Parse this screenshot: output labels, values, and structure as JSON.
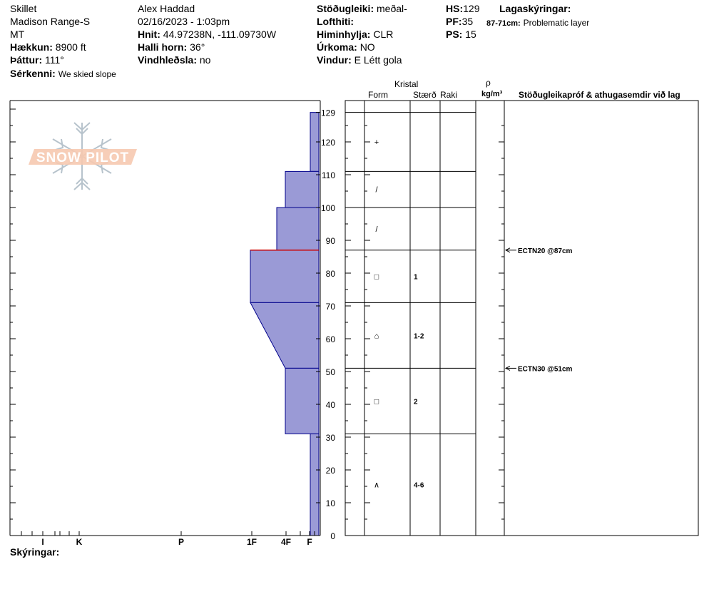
{
  "header": {
    "col1": {
      "location": "Skillet",
      "range": "Madison Range-S",
      "state": "MT",
      "elevation_label": "Hækkun:",
      "elevation_value": "8900 ft",
      "aspect_label": "Þáttur:",
      "aspect_value": "111°",
      "notes_label": "Sérkenni:",
      "notes_value": "We skied slope"
    },
    "col2": {
      "observer": "Alex Haddad",
      "datetime": "02/16/2023 - 1:03pm",
      "coords_label": "Hnit:",
      "coords_value": "44.97238N, -111.09730W",
      "slope_label": "Halli horn:",
      "slope_value": "36°",
      "wind_loading_label": "Vindhleðsla:",
      "wind_loading_value": "no"
    },
    "col3": {
      "stability_label": "Stöðugleiki:",
      "stability_value": "meðal-",
      "air_temp_label": "Lofthiti:",
      "sky_label": "Himinhylja:",
      "sky_value": "CLR",
      "precip_label": "Úrkoma:",
      "precip_value": "NO",
      "wind_label": "Vindur:",
      "wind_value": "E Létt gola"
    },
    "col4": {
      "hs_label": "HS:",
      "hs_value": "129",
      "pf_label": "PF:",
      "pf_value": "35",
      "ps_label": "PS:",
      "ps_value": "15"
    },
    "col5": {
      "layer_notes_label": "Lagaskýringar:",
      "layer_range": "87-71cm:",
      "layer_note": "Problematic layer"
    }
  },
  "logo": {
    "text": "SNOW PILOT"
  },
  "table_headers": {
    "crystal": "Kristal",
    "form": "Form",
    "size": "Stærð",
    "moisture": "Raki",
    "rho": "ρ",
    "density_unit": "kg/m³",
    "tests": "Stöðugleikapróf & athugasemdir við lag"
  },
  "footer": {
    "comments_label": "Skýringar:"
  },
  "chart_data": {
    "type": "snow-profile",
    "y_axis": {
      "label": "",
      "unit": "cm",
      "min": 0,
      "max": 129,
      "ticks": [
        0,
        10,
        20,
        30,
        40,
        50,
        60,
        70,
        80,
        90,
        100,
        110,
        120,
        129
      ]
    },
    "x_axis": {
      "hardness_labels": [
        "I",
        "K",
        "P",
        "1F",
        "4F",
        "F"
      ]
    },
    "layers": [
      {
        "top": 129,
        "bottom": 111,
        "form": "+",
        "size": "",
        "hardness_top": "F",
        "hardness_bottom": "F"
      },
      {
        "top": 111,
        "bottom": 100,
        "form": "/",
        "size": "",
        "hardness_top": "4F",
        "hardness_bottom": "4F"
      },
      {
        "top": 100,
        "bottom": 87,
        "form": "/",
        "size": "",
        "hardness_top": "4F+",
        "hardness_bottom": "4F+"
      },
      {
        "top": 87,
        "bottom": 71,
        "form": "□",
        "size": "1",
        "hardness_top": "1F",
        "hardness_bottom": "1F"
      },
      {
        "top": 71,
        "bottom": 51,
        "form": "⌂",
        "size": "1-2",
        "hardness_top": "1F",
        "hardness_bottom": "4F"
      },
      {
        "top": 51,
        "bottom": 31,
        "form": "□",
        "size": "2",
        "hardness_top": "4F",
        "hardness_bottom": "4F"
      },
      {
        "top": 31,
        "bottom": 0,
        "form": "∧",
        "size": "4-6",
        "hardness_top": "F",
        "hardness_bottom": "F"
      }
    ],
    "problem_layer": 87,
    "tests": [
      {
        "label": "ECTN20 @87cm",
        "depth": 87
      },
      {
        "label": "ECTN30 @51cm",
        "depth": 51
      }
    ]
  },
  "colors": {
    "fill": "#9a9ad6",
    "stroke": "#00008b",
    "problem_line": "#cc0000",
    "logo": "#f4c2a8"
  }
}
